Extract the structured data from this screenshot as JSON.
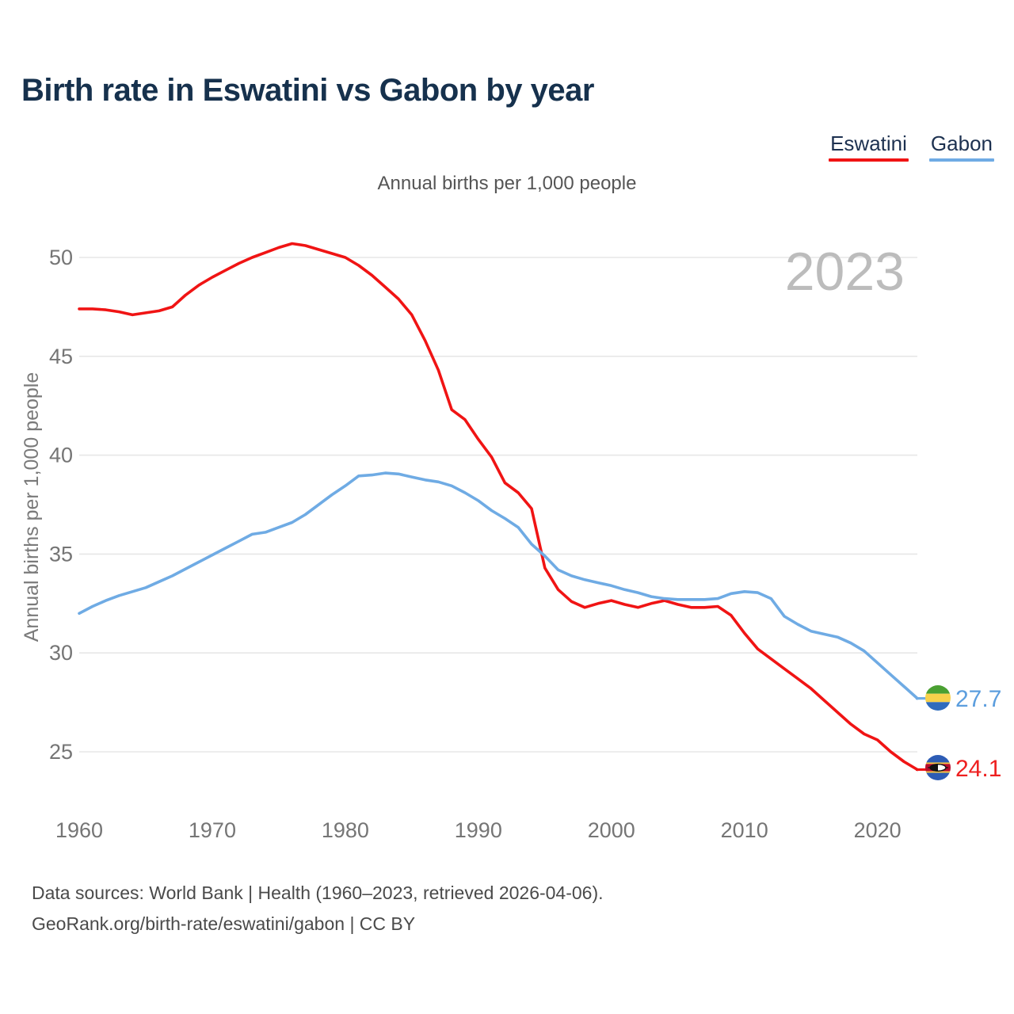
{
  "header": {
    "title": "Birth rate in Eswatini vs Gabon by year"
  },
  "subtitle": "Annual births per 1,000 people",
  "watermark": "2023",
  "legend": [
    {
      "label": "Eswatini",
      "color": "#f01414"
    },
    {
      "label": "Gabon",
      "color": "#6fabe4"
    }
  ],
  "end_labels": [
    {
      "series": "Gabon",
      "value": "27.7",
      "color": "#5c9ede",
      "flag": "gabon-flag"
    },
    {
      "series": "Eswatini",
      "value": "24.1",
      "color": "#ee2020",
      "flag": "eswatini-flag"
    }
  ],
  "footer": {
    "line1": "Data sources: World Bank | Health (1960–2023, retrieved 2026-04-06).",
    "line2": "GeoRank.org/birth-rate/eswatini/gabon | CC BY"
  },
  "chart_data": {
    "type": "line",
    "title": "Birth rate in Eswatini vs Gabon by year",
    "xlabel": "",
    "ylabel": "Annual births per 1,000 people",
    "ylim": [
      23,
      51.5
    ],
    "yticks": [
      25,
      30,
      35,
      40,
      45,
      50
    ],
    "xticks": [
      1960,
      1970,
      1980,
      1990,
      2000,
      2010,
      2020
    ],
    "grid": "horizontal",
    "legend_position": "top-right",
    "x": [
      1960,
      1961,
      1962,
      1963,
      1964,
      1965,
      1966,
      1967,
      1968,
      1969,
      1970,
      1971,
      1972,
      1973,
      1974,
      1975,
      1976,
      1977,
      1978,
      1979,
      1980,
      1981,
      1982,
      1983,
      1984,
      1985,
      1986,
      1987,
      1988,
      1989,
      1990,
      1991,
      1992,
      1993,
      1994,
      1995,
      1996,
      1997,
      1998,
      1999,
      2000,
      2001,
      2002,
      2003,
      2004,
      2005,
      2006,
      2007,
      2008,
      2009,
      2010,
      2011,
      2012,
      2013,
      2014,
      2015,
      2016,
      2017,
      2018,
      2019,
      2020,
      2021,
      2022,
      2023
    ],
    "series": [
      {
        "name": "Eswatini",
        "color": "#f01414",
        "final_value": 24.1,
        "values": [
          47.4,
          47.4,
          47.35,
          47.25,
          47.1,
          47.2,
          47.3,
          47.5,
          48.1,
          48.6,
          49.0,
          49.35,
          49.7,
          50.0,
          50.25,
          50.5,
          50.7,
          50.6,
          50.4,
          50.2,
          50.0,
          49.6,
          49.1,
          48.5,
          47.9,
          47.1,
          45.8,
          44.3,
          42.3,
          41.8,
          40.8,
          39.9,
          38.6,
          38.1,
          37.3,
          34.3,
          33.2,
          32.6,
          32.3,
          32.5,
          32.65,
          32.45,
          32.3,
          32.5,
          32.65,
          32.45,
          32.3,
          32.3,
          32.35,
          31.9,
          31.0,
          30.2,
          29.7,
          29.2,
          28.7,
          28.2,
          27.6,
          27.0,
          26.4,
          25.9,
          25.6,
          25.0,
          24.5,
          24.1
        ]
      },
      {
        "name": "Gabon",
        "color": "#6fabe4",
        "final_value": 27.7,
        "values": [
          32.0,
          32.35,
          32.65,
          32.9,
          33.1,
          33.3,
          33.6,
          33.9,
          34.25,
          34.6,
          34.95,
          35.3,
          35.65,
          36.0,
          36.1,
          36.35,
          36.6,
          37.0,
          37.5,
          38.0,
          38.45,
          38.95,
          39.0,
          39.1,
          39.05,
          38.9,
          38.75,
          38.65,
          38.45,
          38.1,
          37.7,
          37.2,
          36.8,
          36.35,
          35.5,
          34.9,
          34.2,
          33.9,
          33.7,
          33.55,
          33.4,
          33.2,
          33.05,
          32.85,
          32.75,
          32.7,
          32.7,
          32.7,
          32.75,
          33.0,
          33.1,
          33.05,
          32.75,
          31.85,
          31.45,
          31.1,
          30.95,
          30.8,
          30.5,
          30.1,
          29.5,
          28.9,
          28.3,
          27.7
        ]
      }
    ]
  }
}
